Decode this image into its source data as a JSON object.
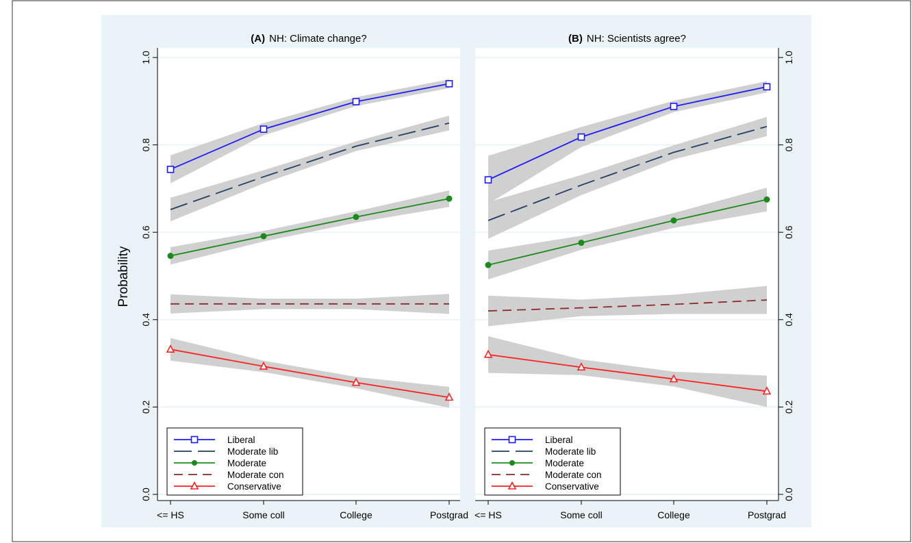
{
  "chart_data": {
    "type": "line",
    "ylabel": "Probability",
    "yticks": [
      "0.0",
      "0.2",
      "0.4",
      "0.6",
      "0.8",
      "1.0"
    ],
    "ylim": [
      0,
      1
    ],
    "categories": [
      "<= HS",
      "Some coll",
      "College",
      "Postgrad"
    ],
    "legend_position": "bottom-left",
    "colors": {
      "Liberal": "#1a1aff",
      "Moderate lib": "#1f3f66",
      "Moderate": "#1a8a1a",
      "Moderate con": "#8b2a2a",
      "Conservative": "#ff2020",
      "ci_band": "#c8c8c8",
      "plot_background": "#eaf3f7"
    },
    "panels": [
      {
        "title_prefix": "(A)",
        "title": "NH: Climate change?",
        "series": [
          {
            "name": "Liberal",
            "marker": "square",
            "dash": "solid",
            "values": [
              0.744,
              0.836,
              0.899,
              0.94
            ],
            "ci_low": [
              0.712,
              0.822,
              0.889,
              0.93
            ],
            "ci_high": [
              0.776,
              0.85,
              0.909,
              0.95
            ]
          },
          {
            "name": "Moderate lib",
            "marker": "none",
            "dash": "longdash",
            "values": [
              0.652,
              0.727,
              0.797,
              0.85
            ],
            "ci_low": [
              0.625,
              0.712,
              0.786,
              0.833
            ],
            "ci_high": [
              0.679,
              0.742,
              0.808,
              0.867
            ]
          },
          {
            "name": "Moderate",
            "marker": "circle",
            "dash": "solid",
            "values": [
              0.546,
              0.591,
              0.635,
              0.677
            ],
            "ci_low": [
              0.526,
              0.579,
              0.622,
              0.658
            ],
            "ci_high": [
              0.566,
              0.603,
              0.648,
              0.696
            ]
          },
          {
            "name": "Moderate con",
            "marker": "none",
            "dash": "dash",
            "values": [
              0.436,
              0.436,
              0.436,
              0.436
            ],
            "ci_low": [
              0.414,
              0.424,
              0.424,
              0.413
            ],
            "ci_high": [
              0.458,
              0.448,
              0.448,
              0.459
            ]
          },
          {
            "name": "Conservative",
            "marker": "triangle",
            "dash": "solid",
            "values": [
              0.332,
              0.293,
              0.256,
              0.222
            ],
            "ci_low": [
              0.306,
              0.28,
              0.243,
              0.198
            ],
            "ci_high": [
              0.358,
              0.306,
              0.269,
              0.246
            ]
          }
        ]
      },
      {
        "title_prefix": "(B)",
        "title": "NH: Scientists agree?",
        "series": [
          {
            "name": "Liberal",
            "marker": "square",
            "dash": "solid",
            "values": [
              0.72,
              0.818,
              0.888,
              0.933
            ],
            "ci_low": [
              0.665,
              0.795,
              0.875,
              0.92
            ],
            "ci_high": [
              0.775,
              0.841,
              0.901,
              0.946
            ]
          },
          {
            "name": "Moderate lib",
            "marker": "none",
            "dash": "longdash",
            "values": [
              0.627,
              0.708,
              0.783,
              0.842
            ],
            "ci_low": [
              0.585,
              0.685,
              0.767,
              0.82
            ],
            "ci_high": [
              0.669,
              0.731,
              0.799,
              0.864
            ]
          },
          {
            "name": "Moderate",
            "marker": "circle",
            "dash": "solid",
            "values": [
              0.525,
              0.576,
              0.627,
              0.675
            ],
            "ci_low": [
              0.492,
              0.56,
              0.61,
              0.648
            ],
            "ci_high": [
              0.558,
              0.592,
              0.644,
              0.702
            ]
          },
          {
            "name": "Moderate con",
            "marker": "none",
            "dash": "dash",
            "values": [
              0.42,
              0.427,
              0.435,
              0.445
            ],
            "ci_low": [
              0.385,
              0.408,
              0.413,
              0.413
            ],
            "ci_high": [
              0.455,
              0.446,
              0.457,
              0.477
            ]
          },
          {
            "name": "Conservative",
            "marker": "triangle",
            "dash": "solid",
            "values": [
              0.32,
              0.291,
              0.264,
              0.236
            ],
            "ci_low": [
              0.278,
              0.273,
              0.247,
              0.2
            ],
            "ci_high": [
              0.362,
              0.309,
              0.281,
              0.272
            ]
          }
        ]
      }
    ]
  }
}
